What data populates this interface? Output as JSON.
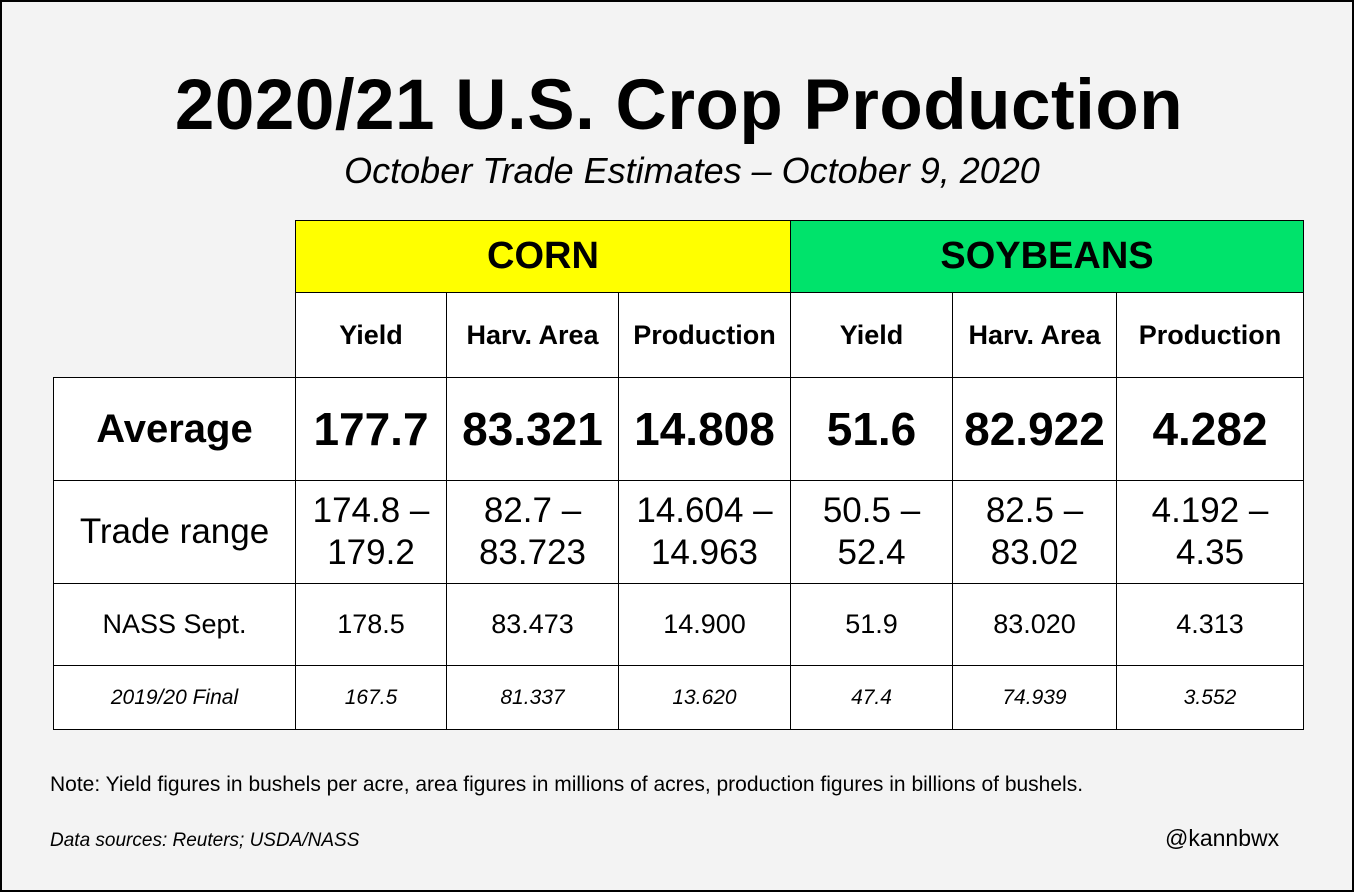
{
  "title": "2020/21 U.S. Crop Production",
  "subtitle": "October Trade Estimates – October 9, 2020",
  "table": {
    "groups": {
      "corn": "CORN",
      "soybeans": "SOYBEANS"
    },
    "columns": [
      "Yield",
      "Harv. Area",
      "Production",
      "Yield",
      "Harv. Area",
      "Production"
    ],
    "rows": [
      {
        "label": "Average",
        "values": [
          "177.7",
          "83.321",
          "14.808",
          "51.6",
          "82.922",
          "4.282"
        ]
      },
      {
        "label": "Trade range",
        "values": [
          {
            "a": "174.8 –",
            "b": "179.2"
          },
          {
            "a": "82.7 –",
            "b": "83.723"
          },
          {
            "a": "14.604 –",
            "b": "14.963"
          },
          {
            "a": "50.5 –",
            "b": "52.4"
          },
          {
            "a": "82.5 –",
            "b": "83.02"
          },
          {
            "a": "4.192 –",
            "b": "4.35"
          }
        ]
      },
      {
        "label": "NASS Sept.",
        "values": [
          "178.5",
          "83.473",
          "14.900",
          "51.9",
          "83.020",
          "4.313"
        ]
      },
      {
        "label": "2019/20 Final",
        "values": [
          "167.5",
          "81.337",
          "13.620",
          "47.4",
          "74.939",
          "3.552"
        ]
      }
    ],
    "colors": {
      "corn_header": "#ffff00",
      "soybeans_header": "#00e36b"
    }
  },
  "note": "Note: Yield figures in bushels per acre, area figures in millions of acres, production figures in billions of bushels.",
  "sources": "Data sources: Reuters; USDA/NASS",
  "handle": "@kannbwx"
}
